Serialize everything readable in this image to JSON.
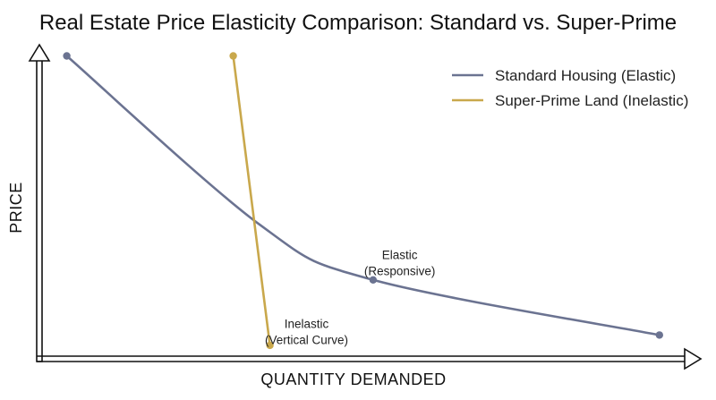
{
  "chart_data": {
    "type": "line",
    "title": "Real Estate Price Elasticity Comparison: Standard vs. Super-Prime",
    "xlabel": "QUANTITY DEMANDED",
    "ylabel": "PRICE",
    "xlim": [
      0,
      100
    ],
    "ylim": [
      0,
      100
    ],
    "grid": false,
    "legend_position": "top-right",
    "series": [
      {
        "name": "Standard Housing (Elastic)",
        "color": "#6b7391",
        "points": [
          [
            6,
            90
          ],
          [
            35,
            41
          ],
          [
            52,
            25
          ],
          [
            95,
            9
          ]
        ],
        "markers": [
          0,
          2,
          3
        ]
      },
      {
        "name": "Super-Prime Land (Inelastic)",
        "color": "#c9a84c",
        "points": [
          [
            31,
            90
          ],
          [
            36.5,
            6
          ]
        ],
        "markers": [
          0,
          1
        ]
      }
    ],
    "annotations": [
      {
        "lines": [
          "Elastic",
          "(Responsive)"
        ],
        "x": 56,
        "y": 31
      },
      {
        "lines": [
          "Inelastic",
          "(Vertical Curve)"
        ],
        "x": 42,
        "y": 11
      }
    ]
  }
}
